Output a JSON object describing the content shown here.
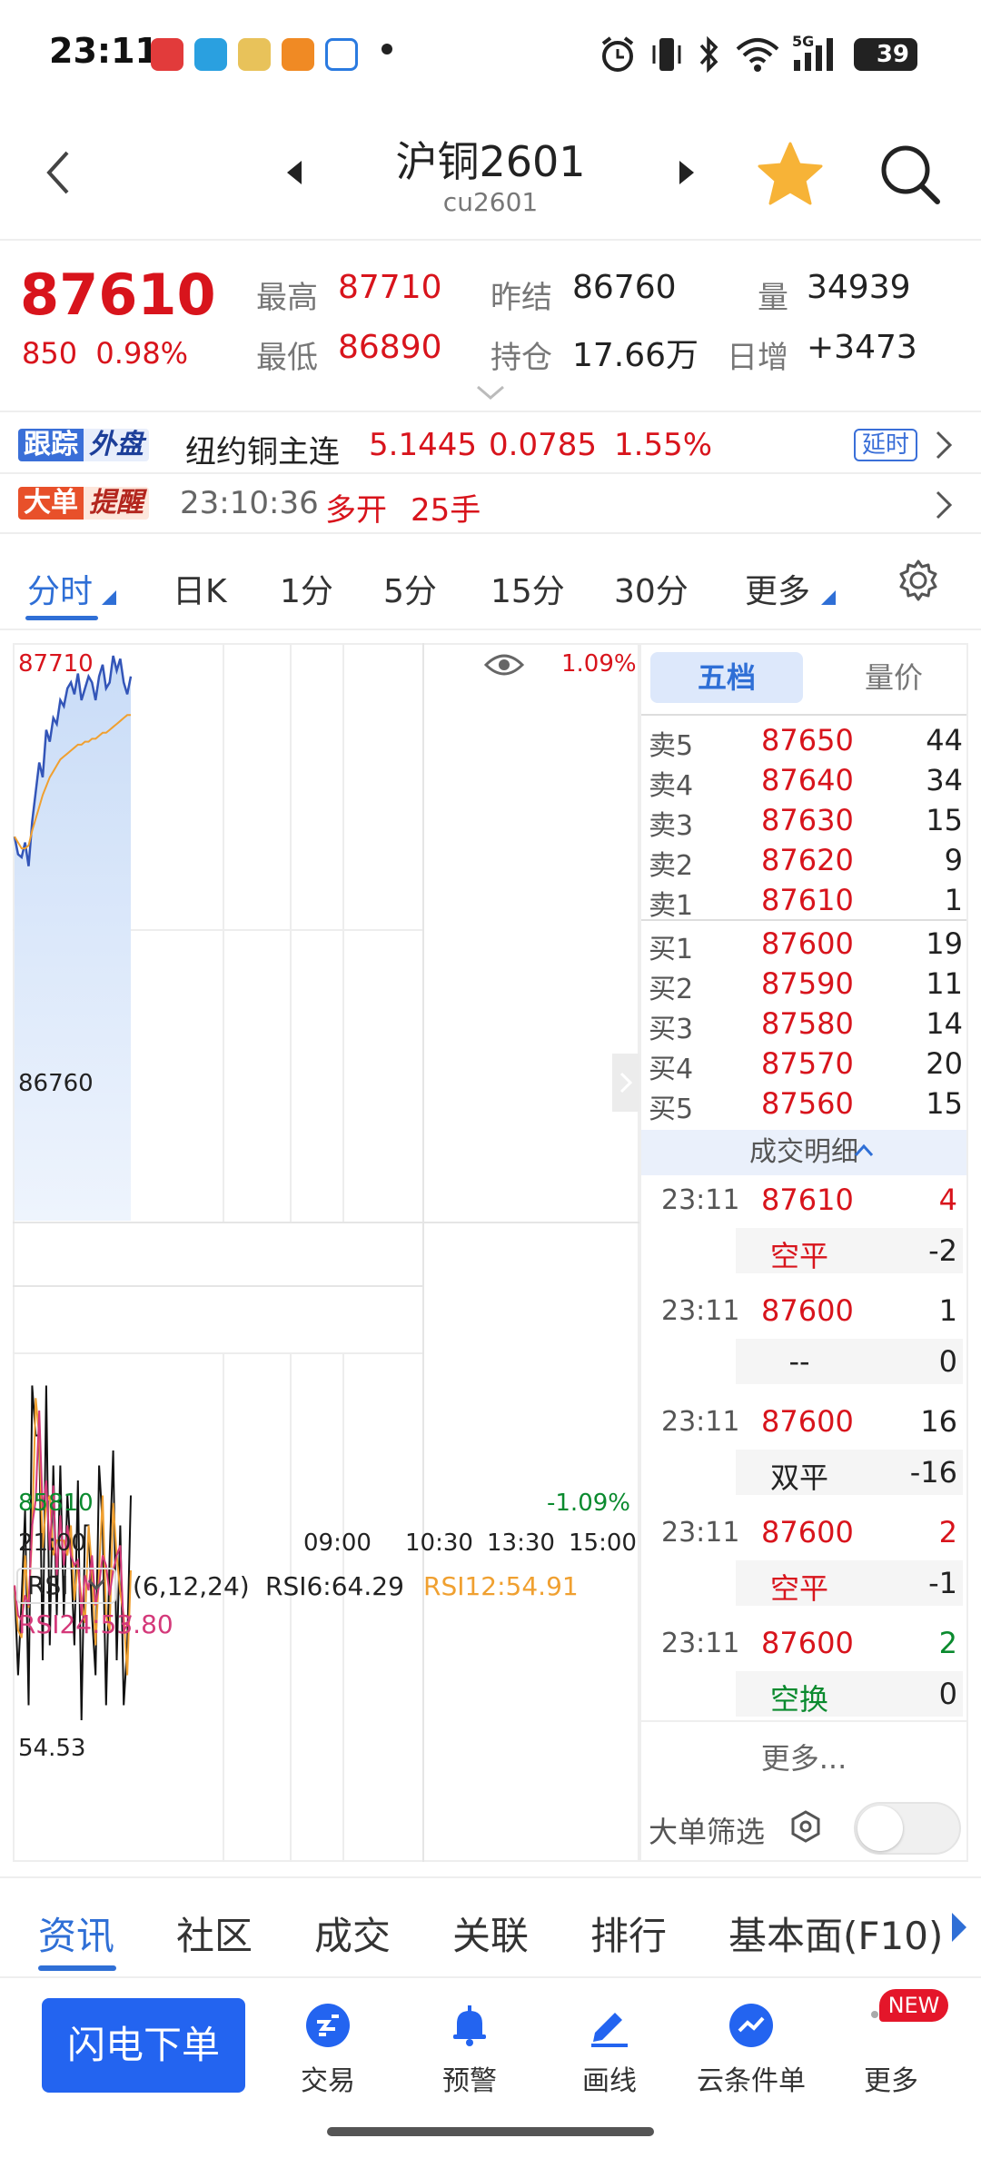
{
  "status": {
    "time": "23:11",
    "battery": "39",
    "network": "5G"
  },
  "header": {
    "title": "沪铜2601",
    "subtitle": "cu2601"
  },
  "quote": {
    "last": "87610",
    "change": "850",
    "change_pct": "0.98%",
    "high_label": "最高",
    "high": "87710",
    "low_label": "最低",
    "low": "86890",
    "prev_settle_label": "昨结",
    "prev_settle": "86760",
    "open_interest_label": "持仓",
    "open_interest": "17.66万",
    "volume_label": "量",
    "volume": "34939",
    "daily_increase_label": "日增",
    "daily_increase": "+3473"
  },
  "track": {
    "tag1": "跟踪",
    "tag2": "外盘",
    "name": "纽约铜主连",
    "price": "5.1445",
    "change": "0.0785",
    "change_pct": "1.55%",
    "delay": "延时"
  },
  "alert": {
    "tag1": "大单",
    "tag2": "提醒",
    "time": "23:10:36",
    "action": "多开",
    "lots": "25手"
  },
  "period_tabs": [
    "分时",
    "日K",
    "1分",
    "5分",
    "15分",
    "30分",
    "更多"
  ],
  "chart": {
    "price_top": "87710",
    "price_mid": "86760",
    "price_bottom": "85810",
    "pct_top": "1.09%",
    "pct_bottom": "-1.09%",
    "time_labels": [
      "21:00",
      "09:00",
      "10:30",
      "13:30",
      "15:00"
    ],
    "rsi": {
      "select": "RSI",
      "params": "(6,12,24)",
      "rsi6": "RSI6:64.29",
      "rsi12": "RSI12:54.91",
      "rsi24": "RSI24:53.80",
      "level": "54.53"
    }
  },
  "chart_data": {
    "type": "line",
    "title": "",
    "ylim": [
      85810,
      87710
    ],
    "prev_settle": 86760,
    "series": [
      {
        "values": [
          87100,
          87040,
          87030,
          87080,
          87000,
          87150,
          87250,
          87350,
          87300,
          87460,
          87420,
          87500,
          87480,
          87560,
          87540,
          87600,
          87620,
          87580,
          87650,
          87560,
          87600,
          87640,
          87620,
          87560,
          87640,
          87680,
          87600,
          87620,
          87710,
          87660,
          87700,
          87620,
          87580,
          87640
        ],
        "color": "#3355b8"
      },
      {
        "values": [
          87100,
          87080,
          87060,
          87060,
          87070,
          87120,
          87160,
          87200,
          87240,
          87270,
          87300,
          87320,
          87340,
          87360,
          87370,
          87380,
          87390,
          87400,
          87410,
          87410,
          87420,
          87420,
          87430,
          87430,
          87440,
          87450,
          87450,
          87460,
          87470,
          87480,
          87490,
          87500,
          87510,
          87510
        ],
        "color": "#f0a030"
      }
    ]
  },
  "order_book": {
    "tabs": [
      "五档",
      "量价"
    ],
    "asks": [
      {
        "label": "卖5",
        "price": "87650",
        "vol": "44"
      },
      {
        "label": "卖4",
        "price": "87640",
        "vol": "34"
      },
      {
        "label": "卖3",
        "price": "87630",
        "vol": "15"
      },
      {
        "label": "卖2",
        "price": "87620",
        "vol": "9"
      },
      {
        "label": "卖1",
        "price": "87610",
        "vol": "1"
      }
    ],
    "bids": [
      {
        "label": "买1",
        "price": "87600",
        "vol": "19"
      },
      {
        "label": "买2",
        "price": "87590",
        "vol": "11"
      },
      {
        "label": "买3",
        "price": "87580",
        "vol": "14"
      },
      {
        "label": "买4",
        "price": "87570",
        "vol": "20"
      },
      {
        "label": "买5",
        "price": "87560",
        "vol": "15"
      }
    ],
    "trade_header": "成交明细",
    "trades": [
      {
        "time": "23:11",
        "price": "87610",
        "vol": "4",
        "action": "空平",
        "qty": "-2"
      },
      {
        "time": "23:11",
        "price": "87600",
        "vol": "1",
        "action": "--",
        "qty": "0"
      },
      {
        "time": "23:11",
        "price": "87600",
        "vol": "16",
        "action": "双平",
        "qty": "-16"
      },
      {
        "time": "23:11",
        "price": "87600",
        "vol": "2",
        "action": "空平",
        "qty": "-1"
      },
      {
        "time": "23:11",
        "price": "87600",
        "vol": "2",
        "action": "空换",
        "qty": "0"
      }
    ],
    "more": "更多...",
    "filter_label": "大单筛选",
    "filter_on": false
  },
  "info_tabs": [
    "资讯",
    "社区",
    "成交",
    "关联",
    "排行",
    "基本面(F10)"
  ],
  "actions": {
    "flash_order": "闪电下单",
    "items": [
      "交易",
      "预警",
      "画线",
      "云条件单",
      "更多"
    ],
    "badge": "NEW"
  },
  "colors": {
    "up": "#d8141c",
    "down": "#0a8a2e",
    "accent": "#2f6fd6",
    "button": "#2364f0"
  }
}
